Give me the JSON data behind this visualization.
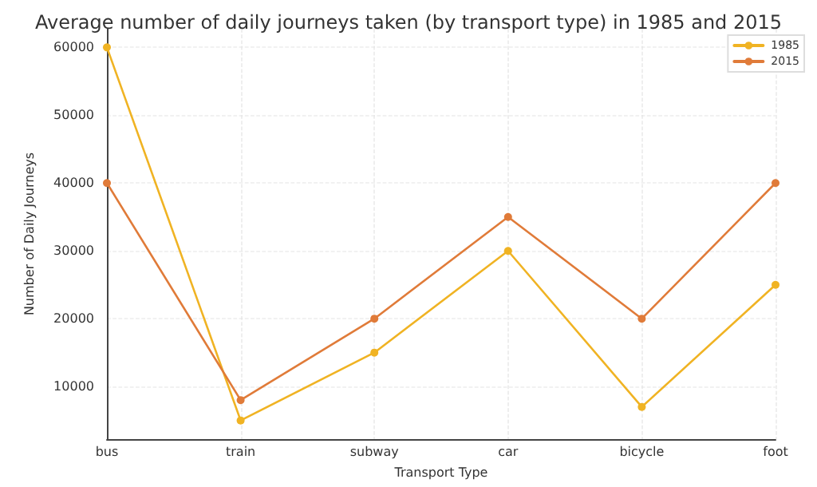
{
  "chart_data": {
    "type": "line",
    "title": "Average number of daily journeys taken (by transport type) in 1985 and 2015",
    "xlabel": "Transport Type",
    "ylabel": "Number of Daily Journeys",
    "categories": [
      "bus",
      "train",
      "subway",
      "car",
      "bicycle",
      "foot"
    ],
    "series": [
      {
        "name": "1985",
        "color": "#f0b323",
        "values": [
          60000,
          5000,
          15000,
          30000,
          7000,
          25000
        ]
      },
      {
        "name": "2015",
        "color": "#e07b39",
        "values": [
          40000,
          8000,
          20000,
          35000,
          20000,
          40000
        ]
      }
    ],
    "ylim": [
      2250,
      62750
    ],
    "yticks": [
      10000,
      20000,
      30000,
      40000,
      50000,
      60000
    ],
    "grid": true,
    "legend": "top right",
    "marker": "circle",
    "line_style": "solid"
  }
}
